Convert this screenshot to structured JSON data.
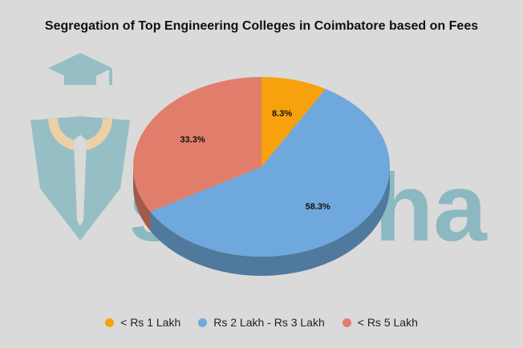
{
  "chart_data": {
    "type": "pie",
    "title": "Segregation of Top Engineering Colleges in Coimbatore  based on Fees",
    "slices": [
      {
        "label": "< Rs 1 Lakh",
        "value": 8.3,
        "display": "8.3%",
        "color": "#f7a10c"
      },
      {
        "label": "Rs 2 Lakh - Rs 3 Lakh",
        "value": 58.3,
        "display": "58.3%",
        "color": "#6fa8dc"
      },
      {
        "label": "< Rs 5 Lakh",
        "value": 33.3,
        "display": "33.3%",
        "color": "#e07e6b"
      }
    ],
    "style": "3d",
    "legend_position": "bottom"
  },
  "watermark": {
    "text": "shiksha",
    "color": "#7fb3bd",
    "icon": "graduation-cap-pen-logo"
  }
}
